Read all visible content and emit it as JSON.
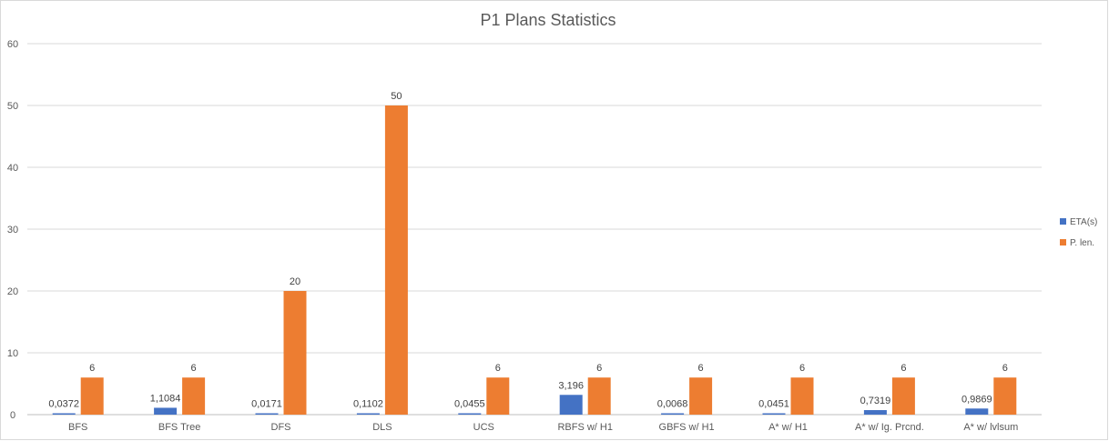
{
  "chart_data": {
    "type": "bar",
    "title": "P1 Plans Statistics",
    "xlabel": "",
    "ylabel": "",
    "ylim": [
      0,
      60
    ],
    "yticks": [
      0,
      10,
      20,
      30,
      40,
      50,
      60
    ],
    "grid": true,
    "legend_position": "right",
    "categories": [
      "BFS",
      "BFS Tree",
      "DFS",
      "DLS",
      "UCS",
      "RBFS w/ H1",
      "GBFS w/ H1",
      "A* w/ H1",
      "A* w/ Ig. Prcnd.",
      "A* w/ lvlsum"
    ],
    "series": [
      {
        "name": "ETA(s)",
        "color": "#4472c4",
        "values": [
          0.0372,
          1.1084,
          0.0171,
          0.1102,
          0.0455,
          3.196,
          0.0068,
          0.0451,
          0.7319,
          0.9869
        ],
        "labels": [
          "0,0372",
          "1,1084",
          "0,0171",
          "0,1102",
          "0,0455",
          "3,196",
          "0,0068",
          "0,0451",
          "0,7319",
          "0,9869"
        ]
      },
      {
        "name": "P. len.",
        "color": "#ed7d31",
        "values": [
          6,
          6,
          20,
          50,
          6,
          6,
          6,
          6,
          6,
          6
        ],
        "labels": [
          "6",
          "6",
          "20",
          "50",
          "6",
          "6",
          "6",
          "6",
          "6",
          "6"
        ]
      }
    ]
  }
}
